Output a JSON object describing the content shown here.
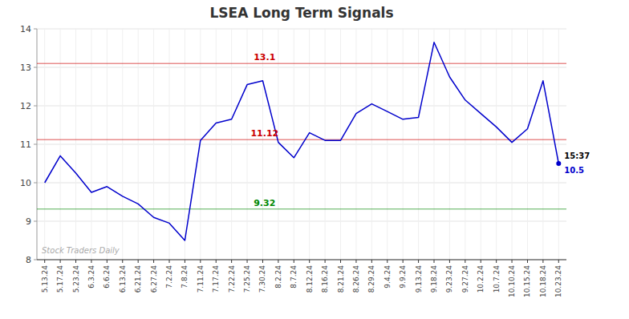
{
  "chart_data": {
    "type": "line",
    "title": "LSEA Long Term Signals",
    "categories": [
      "5.13.24",
      "5.17.24",
      "5.23.24",
      "6.3.24",
      "6.6.24",
      "6.13.24",
      "6.21.24",
      "6.27.24",
      "7.2.24",
      "7.8.24",
      "7.11.24",
      "7.17.24",
      "7.22.24",
      "7.25.24",
      "7.30.24",
      "8.2.24",
      "8.7.24",
      "8.12.24",
      "8.16.24",
      "8.21.24",
      "8.26.24",
      "8.29.24",
      "9.4.24",
      "9.9.24",
      "9.13.24",
      "9.18.24",
      "9.23.24",
      "9.27.24",
      "10.2.24",
      "10.7.24",
      "10.10.24",
      "10.15.24",
      "10.18.24",
      "10.23.24"
    ],
    "values": [
      10.0,
      10.7,
      10.25,
      9.75,
      9.9,
      9.65,
      9.45,
      9.1,
      8.95,
      8.5,
      11.1,
      11.55,
      11.65,
      12.55,
      12.65,
      11.05,
      10.65,
      11.3,
      11.1,
      11.1,
      11.8,
      12.05,
      11.85,
      11.65,
      11.7,
      13.65,
      12.75,
      12.15,
      11.8,
      11.45,
      11.05,
      11.4,
      12.65,
      10.5
    ],
    "color": "#0000cc",
    "ylim": [
      8,
      14
    ],
    "yticks": [
      8,
      9,
      10,
      11,
      12,
      13,
      14
    ],
    "grid": true,
    "annotations": [
      {
        "type": "hline",
        "text": "13.1",
        "y": 13.1,
        "color": "#cc0000"
      },
      {
        "type": "hline",
        "text": "11.12",
        "y": 11.12,
        "color": "#cc0000"
      },
      {
        "type": "hline",
        "text": "9.32",
        "y": 9.32,
        "color": "#008800"
      },
      {
        "type": "time_label",
        "text": "15:37"
      },
      {
        "type": "value_label",
        "text": "10.5",
        "y": 10.5
      },
      {
        "type": "watermark",
        "text": "Stock Traders Daily"
      }
    ]
  }
}
